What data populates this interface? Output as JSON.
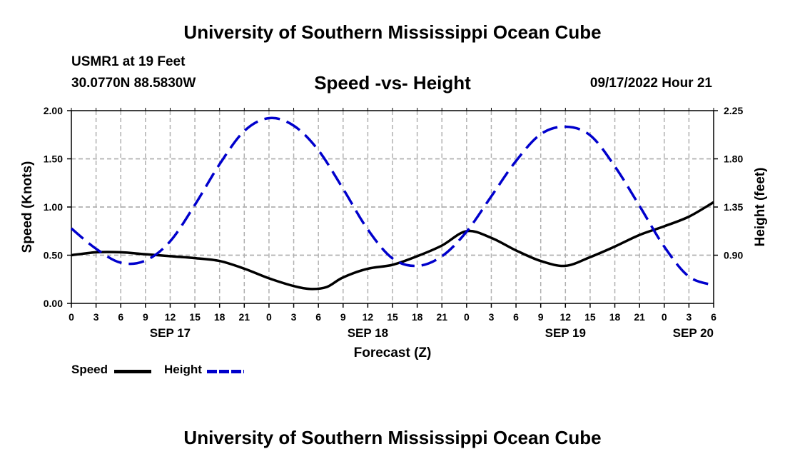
{
  "page": {
    "main_title": "University of Southern Mississippi Ocean Cube",
    "bottom_title": "University of Southern Mississippi Ocean Cube",
    "station": "USMR1 at 19 Feet",
    "coordinates": "30.0770N  88.5830W",
    "subtitle": "Speed -vs- Height",
    "datestamp": "09/17/2022 Hour 21"
  },
  "legend": [
    {
      "label": "Speed",
      "color": "#000000",
      "style": "solid"
    },
    {
      "label": "Height",
      "color": "#0000cc",
      "style": "dashed"
    }
  ],
  "chart_data": {
    "type": "line",
    "title": "Speed -vs- Height",
    "xlabel": "Forecast (Z)",
    "ylabel_left": "Speed (Knots)",
    "ylabel_right": "Height (feet)",
    "x_unit": "hours since SEP 17 00Z",
    "xlim": [
      0,
      78
    ],
    "ylim_left": [
      0,
      2.0
    ],
    "ylim_right": [
      0.45,
      2.25
    ],
    "grid": true,
    "x_ticks": [
      0,
      3,
      6,
      9,
      12,
      15,
      18,
      21,
      24,
      27,
      30,
      33,
      36,
      39,
      42,
      45,
      48,
      51,
      54,
      57,
      60,
      63,
      66,
      69,
      72,
      75,
      78
    ],
    "x_tick_labels": [
      "0",
      "3",
      "6",
      "9",
      "12",
      "15",
      "18",
      "21",
      "0",
      "3",
      "6",
      "9",
      "12",
      "15",
      "18",
      "21",
      "0",
      "3",
      "6",
      "9",
      "12",
      "15",
      "18",
      "21",
      "0",
      "3",
      "6"
    ],
    "date_labels": [
      {
        "x": 12,
        "label": "SEP 17"
      },
      {
        "x": 36,
        "label": "SEP 18"
      },
      {
        "x": 60,
        "label": "SEP 19"
      },
      {
        "x": 78,
        "label": "SEP 20"
      }
    ],
    "y_left_ticks": [
      0,
      0.5,
      1.0,
      1.5,
      2.0
    ],
    "y_left_tick_labels": [
      "0.00",
      "0.50",
      "1.00",
      "1.50",
      "2.00"
    ],
    "y_right_ticks": [
      0.9,
      1.35,
      1.8,
      2.25
    ],
    "y_right_tick_labels": [
      "0.90",
      "1.35",
      "1.80",
      "2.25"
    ],
    "series": [
      {
        "name": "Speed",
        "axis": "left",
        "color": "#000000",
        "style": "solid",
        "x": [
          0,
          3,
          6,
          9,
          12,
          15,
          18,
          21,
          24,
          27,
          29,
          31,
          33,
          36,
          39,
          42,
          45,
          48,
          51,
          54,
          57,
          60,
          63,
          66,
          69,
          72,
          75,
          78
        ],
        "values": [
          0.5,
          0.53,
          0.53,
          0.51,
          0.49,
          0.47,
          0.44,
          0.36,
          0.26,
          0.18,
          0.15,
          0.17,
          0.27,
          0.36,
          0.4,
          0.49,
          0.6,
          0.75,
          0.68,
          0.55,
          0.44,
          0.39,
          0.48,
          0.59,
          0.71,
          0.8,
          0.9,
          1.05
        ]
      },
      {
        "name": "Height",
        "axis": "right",
        "color": "#0000cc",
        "style": "dashed",
        "x": [
          0,
          3,
          6,
          9,
          12,
          15,
          18,
          21,
          24,
          27,
          30,
          33,
          36,
          39,
          42,
          45,
          48,
          51,
          54,
          57,
          60,
          63,
          66,
          69,
          72,
          75,
          78
        ],
        "values": [
          1.15,
          0.96,
          0.83,
          0.85,
          1.03,
          1.37,
          1.75,
          2.06,
          2.18,
          2.11,
          1.88,
          1.52,
          1.14,
          0.87,
          0.8,
          0.89,
          1.12,
          1.45,
          1.78,
          2.03,
          2.1,
          2.02,
          1.73,
          1.36,
          0.98,
          0.7,
          0.62
        ]
      }
    ]
  }
}
